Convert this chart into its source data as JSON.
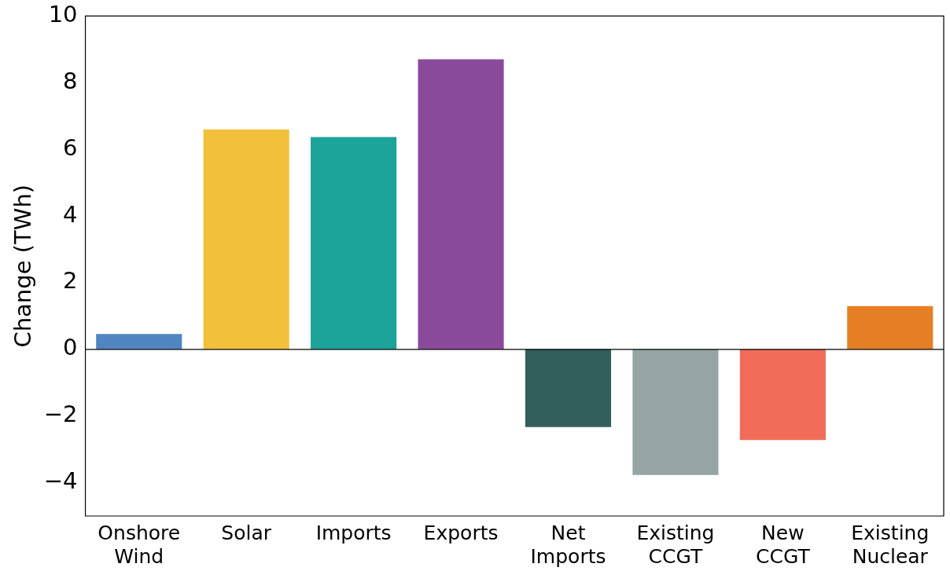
{
  "chart_data": {
    "type": "bar",
    "ylabel": "Change (TWh)",
    "categories": [
      "Onshore Wind",
      "Solar",
      "Imports",
      "Exports",
      "Net Imports",
      "Existing CCGT",
      "New CCGT",
      "Existing Nuclear"
    ],
    "values": [
      0.46,
      6.6,
      6.37,
      8.7,
      -2.33,
      -3.77,
      -2.72,
      1.3
    ],
    "colors": [
      "#5085c2",
      "#f2c03a",
      "#1ca39a",
      "#8a4a9c",
      "#325e5c",
      "#95a5a4",
      "#f06c58",
      "#e67f24"
    ],
    "ylim": [
      -5,
      10
    ],
    "yticks": [
      {
        "value": -4,
        "label": "−4"
      },
      {
        "value": -2,
        "label": "−2"
      },
      0,
      2,
      4,
      6,
      8,
      10
    ],
    "ref_lines": [
      {
        "axis": "y",
        "value": 0,
        "color": "#000000"
      }
    ],
    "grid": false,
    "legend": false
  }
}
